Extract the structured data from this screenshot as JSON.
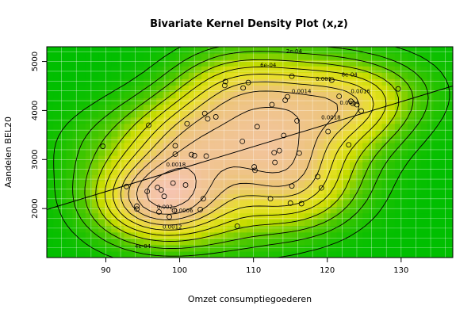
{
  "chart_data": {
    "type": "contour",
    "title": "Bivariate Kernel Density Plot (x,z)",
    "xlabel": "Omzet consumptiegoederen",
    "ylabel": "Aandelen BEL20",
    "xlim": [
      82,
      137
    ],
    "ylim": [
      1000,
      5300
    ],
    "xticks": [
      90,
      100,
      110,
      120,
      130
    ],
    "yticks": [
      2000,
      3000,
      4000,
      5000
    ],
    "grid": true,
    "colors": {
      "low": "#00bf00",
      "mid": "#e8e800",
      "high": "#f3c8b0",
      "grid": "#ffffff",
      "line": "#000000"
    },
    "contour_labels": [
      {
        "text": "2e-04",
        "x": 115.5,
        "y": 5200
      },
      {
        "text": "6e-04",
        "x": 112,
        "y": 4920
      },
      {
        "text": "8e-04",
        "x": 123,
        "y": 4730
      },
      {
        "text": "0.001",
        "x": 119.5,
        "y": 4640
      },
      {
        "text": "0.0014",
        "x": 116.5,
        "y": 4390
      },
      {
        "text": "0.0016",
        "x": 124.5,
        "y": 4390
      },
      {
        "text": "0.0018",
        "x": 120.5,
        "y": 3850
      },
      {
        "text": "0.0024",
        "x": 123,
        "y": 4150
      },
      {
        "text": "0.0018",
        "x": 99.5,
        "y": 2890
      },
      {
        "text": "0.002",
        "x": 98,
        "y": 2030
      },
      {
        "text": "0.0006",
        "x": 100.5,
        "y": 1950
      },
      {
        "text": "0.0012",
        "x": 99,
        "y": 1620
      },
      {
        "text": "4e-04",
        "x": 95,
        "y": 1230
      }
    ],
    "points": [
      {
        "x": 89.6,
        "y": 3270
      },
      {
        "x": 92.8,
        "y": 2450
      },
      {
        "x": 94.2,
        "y": 2050
      },
      {
        "x": 94.2,
        "y": 1990
      },
      {
        "x": 95.6,
        "y": 2350
      },
      {
        "x": 95.8,
        "y": 3700
      },
      {
        "x": 97.0,
        "y": 2430
      },
      {
        "x": 97.2,
        "y": 1930
      },
      {
        "x": 97.5,
        "y": 2380
      },
      {
        "x": 97.9,
        "y": 2250
      },
      {
        "x": 98.6,
        "y": 1830
      },
      {
        "x": 99.1,
        "y": 2520
      },
      {
        "x": 99.3,
        "y": 1960
      },
      {
        "x": 99.4,
        "y": 3280
      },
      {
        "x": 99.4,
        "y": 3110
      },
      {
        "x": 100.8,
        "y": 2480
      },
      {
        "x": 101.0,
        "y": 3730
      },
      {
        "x": 101.6,
        "y": 3100
      },
      {
        "x": 102.0,
        "y": 3080
      },
      {
        "x": 102.8,
        "y": 1980
      },
      {
        "x": 103.2,
        "y": 2200
      },
      {
        "x": 103.4,
        "y": 3940
      },
      {
        "x": 103.6,
        "y": 3070
      },
      {
        "x": 103.8,
        "y": 3830
      },
      {
        "x": 104.9,
        "y": 3870
      },
      {
        "x": 106.1,
        "y": 4510
      },
      {
        "x": 106.2,
        "y": 4590
      },
      {
        "x": 107.8,
        "y": 1640
      },
      {
        "x": 108.5,
        "y": 3370
      },
      {
        "x": 108.6,
        "y": 4460
      },
      {
        "x": 109.3,
        "y": 4570
      },
      {
        "x": 110.1,
        "y": 2850
      },
      {
        "x": 110.2,
        "y": 2780
      },
      {
        "x": 110.5,
        "y": 3670
      },
      {
        "x": 112.3,
        "y": 2200
      },
      {
        "x": 112.5,
        "y": 4120
      },
      {
        "x": 112.8,
        "y": 3140
      },
      {
        "x": 112.9,
        "y": 2940
      },
      {
        "x": 113.5,
        "y": 3180
      },
      {
        "x": 114.1,
        "y": 3490
      },
      {
        "x": 114.3,
        "y": 4210
      },
      {
        "x": 114.6,
        "y": 4280
      },
      {
        "x": 115.0,
        "y": 2110
      },
      {
        "x": 115.2,
        "y": 2460
      },
      {
        "x": 115.2,
        "y": 4700
      },
      {
        "x": 115.9,
        "y": 3790
      },
      {
        "x": 116.2,
        "y": 3130
      },
      {
        "x": 116.5,
        "y": 2100
      },
      {
        "x": 118.7,
        "y": 2650
      },
      {
        "x": 119.2,
        "y": 2420
      },
      {
        "x": 120.1,
        "y": 3570
      },
      {
        "x": 120.6,
        "y": 4620
      },
      {
        "x": 121.6,
        "y": 4290
      },
      {
        "x": 122.9,
        "y": 3300
      },
      {
        "x": 123.2,
        "y": 4190
      },
      {
        "x": 123.5,
        "y": 4140
      },
      {
        "x": 124.0,
        "y": 4120
      },
      {
        "x": 124.6,
        "y": 3990
      },
      {
        "x": 129.6,
        "y": 4440
      }
    ],
    "regression_line": {
      "x": [
        82,
        137
      ],
      "y": [
        1980,
        4500
      ]
    }
  }
}
